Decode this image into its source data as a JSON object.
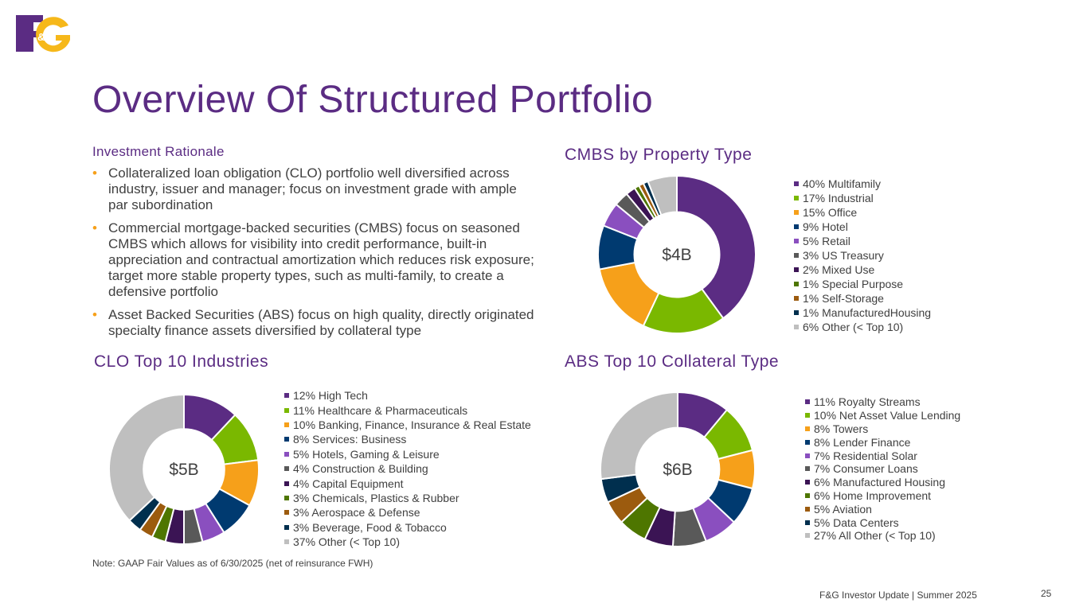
{
  "logo": {
    "text": "F&G"
  },
  "title": "Overview Of Structured Portfolio",
  "rationale": {
    "heading": "Investment Rationale",
    "bullets": [
      "Collateralized loan obligation (CLO) portfolio well diversified across industry, issuer and manager; focus on investment grade with ample par subordination",
      "Commercial mortgage-backed securities (CMBS) focus on seasoned CMBS which allows for visibility into credit performance, built-in appreciation and contractual amortization which reduces risk exposure; target more stable property types, such as multi-family, to create a defensive portfolio",
      "Asset Backed Securities (ABS) focus on high quality, directly originated specialty finance assets diversified by collateral type"
    ]
  },
  "chart_data": [
    {
      "type": "pie",
      "title": "CMBS by Property Type",
      "center_label": "$4B",
      "legend": "right",
      "labels": [
        "40% Multifamily",
        "17% Industrial",
        "15% Office",
        "9% Hotel",
        "5% Retail",
        "3% US Treasury",
        "2% Mixed Use",
        "1% Special Purpose",
        "1% Self-Storage",
        "1% ManufacturedHousing",
        "6% Other (< Top 10)"
      ],
      "values": [
        40,
        17,
        15,
        9,
        5,
        3,
        2,
        1,
        1,
        1,
        6
      ],
      "colors": [
        "#5b2c83",
        "#7ab800",
        "#f6a01a",
        "#003a70",
        "#8a4fbf",
        "#595959",
        "#3b1454",
        "#4e7600",
        "#9c5b0e",
        "#002f4e",
        "#bfbfbf"
      ]
    },
    {
      "type": "pie",
      "title": "CLO Top 10 Industries",
      "center_label": "$5B",
      "legend": "right",
      "labels": [
        "12% High Tech",
        "11% Healthcare & Pharmaceuticals",
        "10% Banking, Finance, Insurance & Real Estate",
        "8% Services: Business",
        "5% Hotels, Gaming & Leisure",
        "4% Construction & Building",
        "4% Capital Equipment",
        "3% Chemicals, Plastics & Rubber",
        "3% Aerospace & Defense",
        "3% Beverage, Food & Tobacco",
        "37% Other (< Top 10)"
      ],
      "values": [
        12,
        11,
        10,
        8,
        5,
        4,
        4,
        3,
        3,
        3,
        37
      ],
      "colors": [
        "#5b2c83",
        "#7ab800",
        "#f6a01a",
        "#003a70",
        "#8a4fbf",
        "#595959",
        "#3b1454",
        "#4e7600",
        "#9c5b0e",
        "#002f4e",
        "#bfbfbf"
      ]
    },
    {
      "type": "pie",
      "title": "ABS Top 10 Collateral Type",
      "center_label": "$6B",
      "legend": "right",
      "labels": [
        "11% Royalty Streams",
        "10% Net Asset Value Lending",
        "8% Towers",
        "8% Lender Finance",
        "7% Residential Solar",
        "7% Consumer Loans",
        "6% Manufactured Housing",
        "6% Home Improvement",
        "5% Aviation",
        "5% Data Centers",
        "27% All Other (< Top 10)"
      ],
      "values": [
        11,
        10,
        8,
        8,
        7,
        7,
        6,
        6,
        5,
        5,
        27
      ],
      "colors": [
        "#5b2c83",
        "#7ab800",
        "#f6a01a",
        "#003a70",
        "#8a4fbf",
        "#595959",
        "#3b1454",
        "#4e7600",
        "#9c5b0e",
        "#002f4e",
        "#bfbfbf"
      ]
    }
  ],
  "note": "Note: GAAP Fair Values as of 6/30/2025 (net of reinsurance FWH)",
  "footer": "F&G Investor Update |  Summer 2025",
  "page_number": "25"
}
